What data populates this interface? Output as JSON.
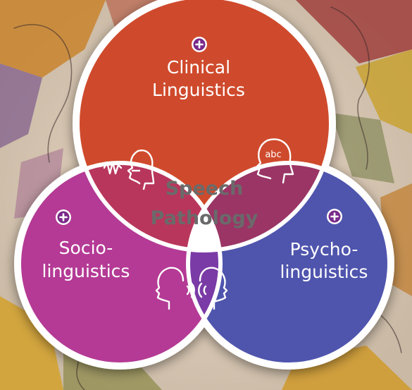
{
  "diagram": {
    "center": {
      "line1": "Speech",
      "line2": "Pathology"
    },
    "circles": [
      {
        "id": "clinical",
        "line1": "Clinical",
        "line2": "Linguistics",
        "color": "#cf4a2c"
      },
      {
        "id": "socio",
        "line1": "Socio-",
        "line2": "linguistics",
        "color": "#b43a95"
      },
      {
        "id": "psycho",
        "line1": "Psycho-",
        "line2": "linguistics",
        "color": "#4f55ad"
      }
    ],
    "overlaps": {
      "clinical_socio": {
        "color": "#b8365c",
        "icon": "speech-articulation-icon"
      },
      "clinical_psycho": {
        "color": "#9a3565",
        "icon": "head-abc-icon",
        "icon_text": "abc"
      },
      "socio_psycho": {
        "color": "#7a3ba6",
        "icon": "two-heads-conversation-icon"
      }
    },
    "expand_icon": "plus-circle-icon"
  }
}
